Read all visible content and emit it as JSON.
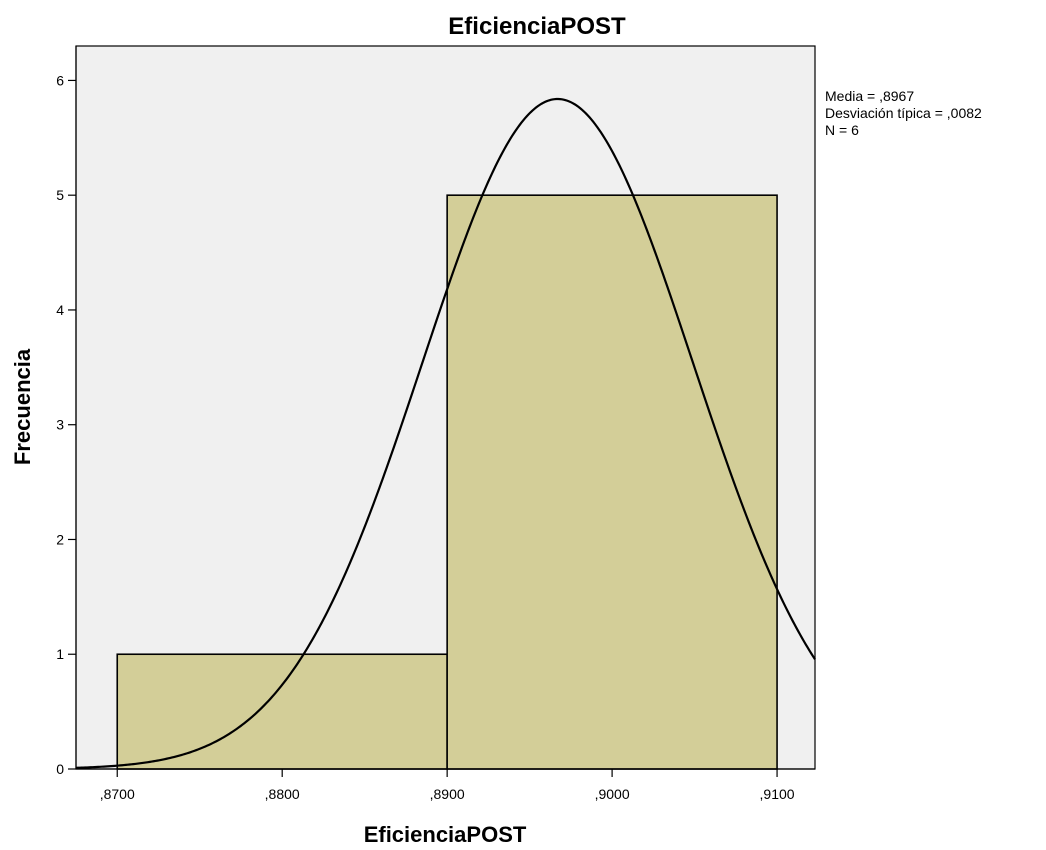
{
  "chart_data": {
    "type": "bar",
    "title": "EficienciaPOST",
    "xlabel": "EficienciaPOST",
    "ylabel": "Frecuencia",
    "xlim": [
      0.8675,
      0.9123
    ],
    "ylim": [
      0,
      6.3
    ],
    "x_ticks": [
      0.87,
      0.88,
      0.89,
      0.9,
      0.91
    ],
    "x_tick_labels": [
      ",8700",
      ",8800",
      ",8900",
      ",9000",
      ",9100"
    ],
    "y_ticks": [
      0,
      1,
      2,
      3,
      4,
      5,
      6
    ],
    "y_tick_labels": [
      "0",
      "1",
      "2",
      "3",
      "4",
      "5",
      "6"
    ],
    "bins": [
      {
        "start": 0.87,
        "end": 0.89,
        "value": 1
      },
      {
        "start": 0.89,
        "end": 0.91,
        "value": 5
      }
    ],
    "normal_curve": {
      "mean": 0.8967,
      "std": 0.0082,
      "n": 6,
      "bin_width": 0.02
    },
    "stats": [
      "Media = ,8967",
      "Desviación típica = ,0082",
      "N = 6"
    ],
    "colors": {
      "plot_background": "#f0f0f0",
      "bar_fill": "#d3ce98",
      "bar_stroke": "#000000",
      "curve": "#000000"
    },
    "grid": false
  }
}
